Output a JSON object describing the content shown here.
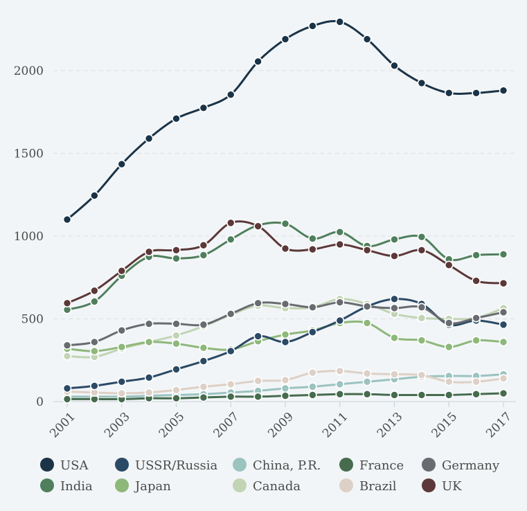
{
  "chart_data": {
    "type": "line",
    "title": "",
    "xlabel": "",
    "ylabel": "",
    "x": [
      2001,
      2002,
      2003,
      2004,
      2005,
      2006,
      2007,
      2008,
      2009,
      2010,
      2011,
      2012,
      2013,
      2014,
      2015,
      2016,
      2017
    ],
    "x_tick_labels": [
      "2001",
      "2003",
      "2005",
      "2007",
      "2009",
      "2011",
      "2013",
      "2015",
      "2017"
    ],
    "y_ticks": [
      0,
      500,
      1000,
      1500,
      2000
    ],
    "ylim": [
      0,
      2300
    ],
    "grid": "horizontal dashed",
    "legend_position": "bottom",
    "series": [
      {
        "name": "USA",
        "color": "#1a3347",
        "values": [
          1100,
          1245,
          1435,
          1590,
          1710,
          1775,
          1855,
          2055,
          2190,
          2270,
          2295,
          2190,
          2030,
          1925,
          1865,
          1865,
          1880
        ]
      },
      {
        "name": "USSR/Russia",
        "color": "#2b4a66",
        "values": [
          80,
          95,
          120,
          145,
          195,
          245,
          305,
          395,
          360,
          420,
          490,
          575,
          620,
          590,
          465,
          490,
          465
        ]
      },
      {
        "name": "China, P.R.",
        "color": "#9bc3c0",
        "values": [
          30,
          30,
          30,
          35,
          40,
          45,
          55,
          65,
          80,
          90,
          105,
          120,
          135,
          150,
          155,
          155,
          165
        ]
      },
      {
        "name": "France",
        "color": "#466b4e",
        "values": [
          15,
          15,
          15,
          20,
          20,
          25,
          30,
          30,
          35,
          40,
          45,
          45,
          40,
          40,
          40,
          45,
          50
        ]
      },
      {
        "name": "Germany",
        "color": "#686b70",
        "values": [
          340,
          360,
          430,
          470,
          470,
          465,
          530,
          595,
          590,
          570,
          600,
          575,
          565,
          570,
          475,
          505,
          540
        ]
      },
      {
        "name": "India",
        "color": "#4f7f5c",
        "values": [
          555,
          605,
          760,
          875,
          865,
          885,
          980,
          1065,
          1075,
          985,
          1025,
          940,
          980,
          995,
          860,
          885,
          890
        ]
      },
      {
        "name": "Japan",
        "color": "#8db87a",
        "values": [
          320,
          305,
          330,
          360,
          350,
          325,
          315,
          365,
          405,
          430,
          475,
          475,
          385,
          370,
          330,
          370,
          360
        ]
      },
      {
        "name": "Canada",
        "color": "#c1d4b4",
        "values": [
          275,
          270,
          320,
          360,
          400,
          455,
          525,
          580,
          565,
          570,
          620,
          590,
          530,
          505,
          500,
          505,
          565
        ]
      },
      {
        "name": "Brazil",
        "color": "#ddd0c6",
        "values": [
          60,
          55,
          50,
          55,
          70,
          90,
          105,
          125,
          130,
          175,
          185,
          170,
          165,
          160,
          120,
          120,
          140
        ]
      },
      {
        "name": "UK",
        "color": "#5c3838",
        "values": [
          595,
          670,
          790,
          905,
          915,
          945,
          1080,
          1060,
          925,
          920,
          950,
          915,
          880,
          915,
          825,
          730,
          715
        ]
      }
    ]
  }
}
